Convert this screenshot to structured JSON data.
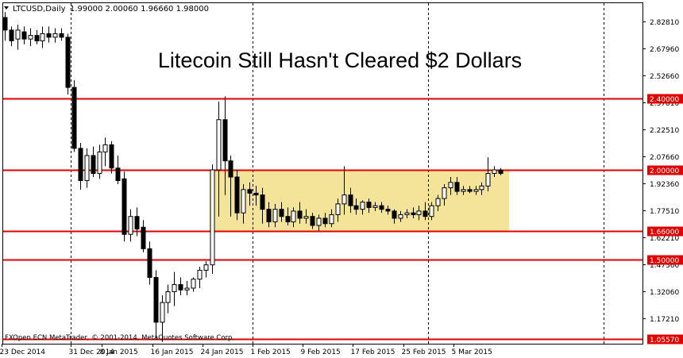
{
  "chart_data": {
    "type": "candlestick",
    "symbol_header": "LTCUSD,Daily",
    "ohlc_readout": "1.99000 2.00060 1.96660 1.98000",
    "title": "Litecoin Still Hasn't Cleared $2 Dollars",
    "copyright": "FXOpen ECN MetaTrader, © 2001-2014, MetaQuotes Software Corp.",
    "y_range": [
      1.03,
      2.93
    ],
    "y_ticks": [
      "2.82810",
      "2.67960",
      "2.52660",
      "2.37810",
      "2.22510",
      "2.07660",
      "1.92360",
      "1.77510",
      "1.62210",
      "1.47360",
      "1.32060",
      "1.17210"
    ],
    "x_labels": [
      "23 Dec 2014",
      "31 Dec 2014",
      "8 Jan 2015",
      "16 Jan 2015",
      "24 Jan 2015",
      "1 Feb 2015",
      "9 Feb 2015",
      "17 Feb 2015",
      "25 Feb 2015",
      "5 Mar 2015"
    ],
    "x_label_indices": [
      0,
      11,
      16,
      24,
      32,
      40,
      48,
      56,
      64,
      72
    ],
    "vertical_separators": [
      11,
      40,
      68,
      96
    ],
    "levels": [
      {
        "value": 2.4,
        "label": "2.40000"
      },
      {
        "value": 2.0,
        "label": "2.00000"
      },
      {
        "value": 1.66,
        "label": "1.66000"
      },
      {
        "value": 1.5,
        "label": "1.50000"
      },
      {
        "value": 1.0557,
        "label": "1.05570"
      }
    ],
    "zone": {
      "from_index": 33,
      "to_index": 80,
      "low": 1.66,
      "high": 2.0
    },
    "candles": [
      {
        "o": 2.85,
        "h": 2.88,
        "l": 2.72,
        "c": 2.78
      },
      {
        "o": 2.78,
        "h": 2.8,
        "l": 2.69,
        "c": 2.72
      },
      {
        "o": 2.73,
        "h": 2.81,
        "l": 2.67,
        "c": 2.78
      },
      {
        "o": 2.77,
        "h": 2.8,
        "l": 2.7,
        "c": 2.73
      },
      {
        "o": 2.73,
        "h": 2.79,
        "l": 2.69,
        "c": 2.75
      },
      {
        "o": 2.75,
        "h": 2.78,
        "l": 2.7,
        "c": 2.72
      },
      {
        "o": 2.72,
        "h": 2.8,
        "l": 2.68,
        "c": 2.76
      },
      {
        "o": 2.76,
        "h": 2.8,
        "l": 2.71,
        "c": 2.74
      },
      {
        "o": 2.74,
        "h": 2.79,
        "l": 2.71,
        "c": 2.76
      },
      {
        "o": 2.76,
        "h": 2.79,
        "l": 2.72,
        "c": 2.74
      },
      {
        "o": 2.74,
        "h": 2.76,
        "l": 2.42,
        "c": 2.46
      },
      {
        "o": 2.46,
        "h": 2.5,
        "l": 2.1,
        "c": 2.12
      },
      {
        "o": 2.12,
        "h": 2.15,
        "l": 1.89,
        "c": 1.94
      },
      {
        "o": 1.94,
        "h": 2.12,
        "l": 1.9,
        "c": 2.08
      },
      {
        "o": 2.08,
        "h": 2.13,
        "l": 1.96,
        "c": 1.98
      },
      {
        "o": 1.98,
        "h": 2.14,
        "l": 1.95,
        "c": 2.1
      },
      {
        "o": 2.1,
        "h": 2.18,
        "l": 2.02,
        "c": 2.14
      },
      {
        "o": 2.14,
        "h": 2.16,
        "l": 1.98,
        "c": 2.01
      },
      {
        "o": 2.01,
        "h": 2.08,
        "l": 1.92,
        "c": 1.94
      },
      {
        "o": 1.95,
        "h": 1.99,
        "l": 1.6,
        "c": 1.64
      },
      {
        "o": 1.64,
        "h": 1.78,
        "l": 1.6,
        "c": 1.74
      },
      {
        "o": 1.74,
        "h": 1.79,
        "l": 1.63,
        "c": 1.67
      },
      {
        "o": 1.68,
        "h": 1.72,
        "l": 1.54,
        "c": 1.56
      },
      {
        "o": 1.56,
        "h": 1.6,
        "l": 1.36,
        "c": 1.4
      },
      {
        "o": 1.4,
        "h": 1.44,
        "l": 1.06,
        "c": 1.15
      },
      {
        "o": 1.15,
        "h": 1.3,
        "l": 1.04,
        "c": 1.26
      },
      {
        "o": 1.26,
        "h": 1.36,
        "l": 1.2,
        "c": 1.32
      },
      {
        "o": 1.32,
        "h": 1.43,
        "l": 1.24,
        "c": 1.36
      },
      {
        "o": 1.36,
        "h": 1.4,
        "l": 1.3,
        "c": 1.33
      },
      {
        "o": 1.33,
        "h": 1.38,
        "l": 1.3,
        "c": 1.34
      },
      {
        "o": 1.34,
        "h": 1.4,
        "l": 1.32,
        "c": 1.39
      },
      {
        "o": 1.39,
        "h": 1.46,
        "l": 1.34,
        "c": 1.44
      },
      {
        "o": 1.44,
        "h": 1.49,
        "l": 1.4,
        "c": 1.47
      },
      {
        "o": 1.47,
        "h": 2.03,
        "l": 1.42,
        "c": 2.0
      },
      {
        "o": 2.0,
        "h": 2.38,
        "l": 1.74,
        "c": 2.28
      },
      {
        "o": 2.28,
        "h": 2.41,
        "l": 1.86,
        "c": 2.05
      },
      {
        "o": 2.05,
        "h": 2.08,
        "l": 1.74,
        "c": 1.96
      },
      {
        "o": 1.96,
        "h": 2.0,
        "l": 1.72,
        "c": 1.76
      },
      {
        "o": 1.76,
        "h": 1.92,
        "l": 1.7,
        "c": 1.89
      },
      {
        "o": 1.89,
        "h": 1.93,
        "l": 1.8,
        "c": 1.87
      },
      {
        "o": 1.87,
        "h": 1.91,
        "l": 1.8,
        "c": 1.86
      },
      {
        "o": 1.86,
        "h": 1.9,
        "l": 1.7,
        "c": 1.78
      },
      {
        "o": 1.78,
        "h": 1.82,
        "l": 1.68,
        "c": 1.71
      },
      {
        "o": 1.71,
        "h": 1.81,
        "l": 1.68,
        "c": 1.78
      },
      {
        "o": 1.78,
        "h": 1.82,
        "l": 1.71,
        "c": 1.74
      },
      {
        "o": 1.74,
        "h": 1.79,
        "l": 1.69,
        "c": 1.71
      },
      {
        "o": 1.71,
        "h": 1.79,
        "l": 1.68,
        "c": 1.77
      },
      {
        "o": 1.77,
        "h": 1.82,
        "l": 1.7,
        "c": 1.73
      },
      {
        "o": 1.73,
        "h": 1.78,
        "l": 1.7,
        "c": 1.74
      },
      {
        "o": 1.74,
        "h": 1.76,
        "l": 1.67,
        "c": 1.69
      },
      {
        "o": 1.69,
        "h": 1.75,
        "l": 1.66,
        "c": 1.73
      },
      {
        "o": 1.73,
        "h": 1.76,
        "l": 1.68,
        "c": 1.7
      },
      {
        "o": 1.7,
        "h": 1.78,
        "l": 1.68,
        "c": 1.75
      },
      {
        "o": 1.75,
        "h": 1.84,
        "l": 1.71,
        "c": 1.81
      },
      {
        "o": 1.81,
        "h": 2.02,
        "l": 1.75,
        "c": 1.86
      },
      {
        "o": 1.86,
        "h": 1.9,
        "l": 1.76,
        "c": 1.8
      },
      {
        "o": 1.8,
        "h": 1.84,
        "l": 1.75,
        "c": 1.78
      },
      {
        "o": 1.78,
        "h": 1.83,
        "l": 1.75,
        "c": 1.82
      },
      {
        "o": 1.82,
        "h": 1.84,
        "l": 1.76,
        "c": 1.79
      },
      {
        "o": 1.79,
        "h": 1.82,
        "l": 1.77,
        "c": 1.8
      },
      {
        "o": 1.8,
        "h": 1.82,
        "l": 1.76,
        "c": 1.78
      },
      {
        "o": 1.78,
        "h": 1.8,
        "l": 1.75,
        "c": 1.77
      },
      {
        "o": 1.77,
        "h": 1.78,
        "l": 1.7,
        "c": 1.73
      },
      {
        "o": 1.73,
        "h": 1.77,
        "l": 1.71,
        "c": 1.75
      },
      {
        "o": 1.75,
        "h": 1.78,
        "l": 1.73,
        "c": 1.76
      },
      {
        "o": 1.76,
        "h": 1.79,
        "l": 1.73,
        "c": 1.75
      },
      {
        "o": 1.75,
        "h": 1.8,
        "l": 1.72,
        "c": 1.77
      },
      {
        "o": 1.77,
        "h": 1.82,
        "l": 1.72,
        "c": 1.74
      },
      {
        "o": 1.74,
        "h": 1.82,
        "l": 1.72,
        "c": 1.8
      },
      {
        "o": 1.8,
        "h": 1.86,
        "l": 1.77,
        "c": 1.84
      },
      {
        "o": 1.84,
        "h": 1.92,
        "l": 1.8,
        "c": 1.9
      },
      {
        "o": 1.9,
        "h": 1.96,
        "l": 1.86,
        "c": 1.93
      },
      {
        "o": 1.93,
        "h": 1.96,
        "l": 1.86,
        "c": 1.88
      },
      {
        "o": 1.88,
        "h": 1.91,
        "l": 1.86,
        "c": 1.89
      },
      {
        "o": 1.89,
        "h": 1.91,
        "l": 1.87,
        "c": 1.88
      },
      {
        "o": 1.88,
        "h": 1.91,
        "l": 1.86,
        "c": 1.89
      },
      {
        "o": 1.89,
        "h": 1.93,
        "l": 1.86,
        "c": 1.91
      },
      {
        "o": 1.91,
        "h": 2.07,
        "l": 1.88,
        "c": 1.98
      },
      {
        "o": 1.98,
        "h": 2.02,
        "l": 1.96,
        "c": 2.0
      },
      {
        "o": 2.0,
        "h": 2.01,
        "l": 1.97,
        "c": 1.98
      }
    ],
    "colors": {
      "bull": "#ffffff",
      "bear": "#000000",
      "level_line": "#e00000",
      "level_tag": "#e00000",
      "zone_fill": "#f3e49a",
      "grid": "#000000"
    }
  }
}
